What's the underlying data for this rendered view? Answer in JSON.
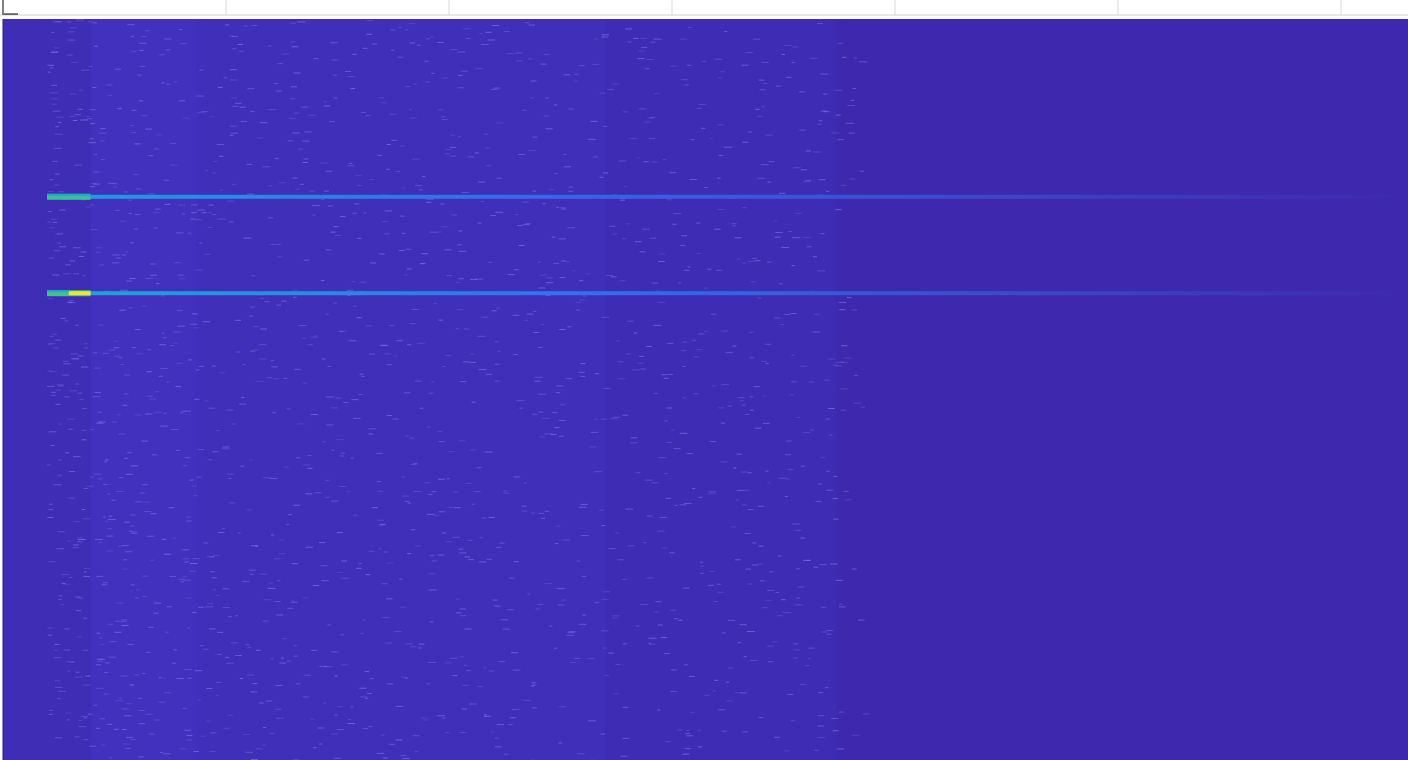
{
  "chart_data": {
    "type": "heatmap",
    "title": "",
    "xlabel": "",
    "ylabel": "",
    "grid": true,
    "colormap": "parula",
    "colors": {
      "background_low": "#3d26a8",
      "mid_low": "#4a42d8",
      "mid": "#2f8ff0",
      "mid_high": "#1fb8b8",
      "high": "#6bd054",
      "peak": "#f5e626",
      "grid": "#d9d9d9",
      "frame": "#000000"
    },
    "tick_labels_visible": false,
    "x_range": [
      0,
      1
    ],
    "y_range": [
      0,
      1
    ],
    "bands": [
      {
        "row": 0.24,
        "core_start": 0.0,
        "core_end": 0.032,
        "core_intensity": 0.7,
        "peak_start": 0.0,
        "peak_end": 0.0,
        "peak_intensity": 0.0,
        "tail_end": 1.0,
        "tail_intensity": 0.28
      },
      {
        "row": 0.37,
        "core_start": 0.0,
        "core_end": 0.032,
        "core_intensity": 0.72,
        "peak_start": 0.016,
        "peak_end": 0.032,
        "peak_intensity": 1.0,
        "tail_end": 1.0,
        "tail_intensity": 0.32
      }
    ],
    "column_regions": [
      {
        "x0": 0.0,
        "x1": 0.032,
        "intensity": 0.05
      },
      {
        "x0": 0.032,
        "x1": 0.11,
        "intensity": 0.1
      },
      {
        "x0": 0.11,
        "x1": 0.41,
        "intensity": 0.07
      },
      {
        "x0": 0.41,
        "x1": 0.58,
        "intensity": 0.04
      },
      {
        "x0": 0.58,
        "x1": 1.0,
        "intensity": 0.0
      }
    ],
    "speckle_extent": 0.6
  }
}
